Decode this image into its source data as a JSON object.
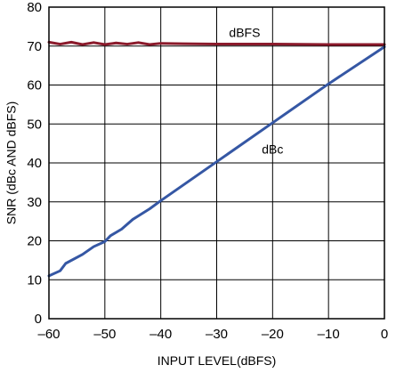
{
  "chart_data": {
    "type": "line",
    "title": "",
    "xlabel": "INPUT LEVEL(dBFS)",
    "ylabel": "SNR (dBc AND dBFS)",
    "xlim": [
      -60,
      0
    ],
    "ylim": [
      0,
      80
    ],
    "x_ticks": [
      -60,
      -50,
      -40,
      -30,
      -20,
      -10,
      0
    ],
    "y_ticks": [
      0,
      10,
      20,
      30,
      40,
      50,
      60,
      70,
      80
    ],
    "x_tick_labels": [
      "–60",
      "–50",
      "–40",
      "–30",
      "–20",
      "–10",
      "0"
    ],
    "y_tick_labels": [
      "0",
      "10",
      "20",
      "30",
      "40",
      "50",
      "60",
      "70",
      "80"
    ],
    "grid": true,
    "series": [
      {
        "name": "dBFS",
        "color": "#8b1a2b",
        "label_at": [
          -25,
          73.5
        ],
        "points": [
          [
            -60,
            71.0
          ],
          [
            -58,
            70.5
          ],
          [
            -56,
            71.0
          ],
          [
            -54,
            70.4
          ],
          [
            -52,
            70.9
          ],
          [
            -50,
            70.4
          ],
          [
            -48,
            70.8
          ],
          [
            -46,
            70.5
          ],
          [
            -44,
            70.9
          ],
          [
            -42,
            70.4
          ],
          [
            -40,
            70.7
          ],
          [
            -36,
            70.6
          ],
          [
            -30,
            70.5
          ],
          [
            -20,
            70.5
          ],
          [
            -10,
            70.4
          ],
          [
            0,
            70.4
          ]
        ]
      },
      {
        "name": "dBc",
        "color": "#3557a4",
        "label_at": [
          -20,
          43.5
        ],
        "points": [
          [
            -60,
            11.0
          ],
          [
            -58,
            12.3
          ],
          [
            -57,
            14.2
          ],
          [
            -54,
            16.5
          ],
          [
            -52,
            18.5
          ],
          [
            -50,
            19.8
          ],
          [
            -49,
            21.3
          ],
          [
            -47,
            23.0
          ],
          [
            -45,
            25.5
          ],
          [
            -44,
            26.4
          ],
          [
            -42,
            28.2
          ],
          [
            -40,
            30.3
          ],
          [
            -30,
            40.3
          ],
          [
            -20,
            50.3
          ],
          [
            -10,
            60.3
          ],
          [
            0,
            69.8
          ]
        ]
      }
    ]
  }
}
